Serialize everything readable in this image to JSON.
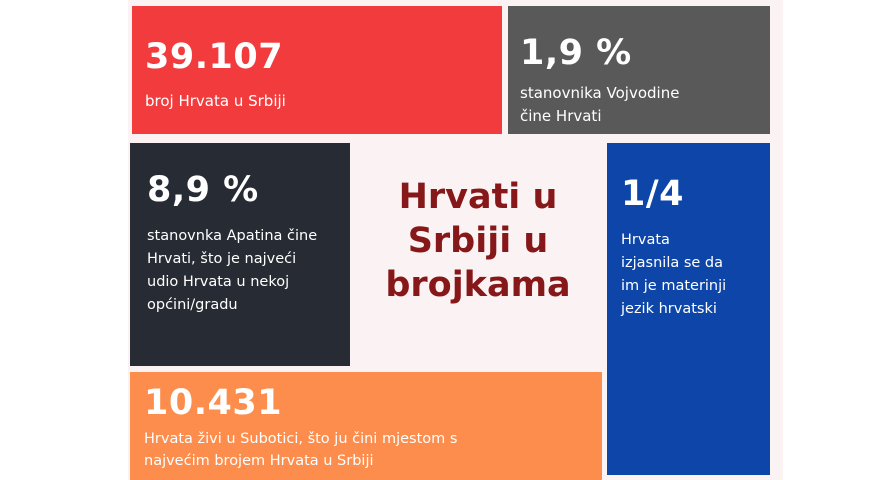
{
  "tiles": {
    "red": {
      "value": "39.107",
      "text": "broj Hrvata u Srbiji",
      "color": "#f23b3d"
    },
    "gray": {
      "value": "1,9 %",
      "text": "stanovnika Vojvodine\nčine Hrvati",
      "color": "#595959"
    },
    "dark": {
      "value": "8,9 %",
      "text": "stanovnka Apatina čine\nHrvati, što je najveći\nudio Hrvata u nekoj\nopćini/gradu",
      "color": "#272b33"
    },
    "blue": {
      "value": "1/4",
      "text": "Hrvata\nizjasnila se da\nim je materinji\njezik hrvatski",
      "color": "#0d46a8"
    },
    "orange": {
      "value": "10.431",
      "text": "Hrvata živi u Subotici, što ju čini mjestom s\nnajvećim brojem Hrvata  u Srbiji",
      "color": "#fd8d4c"
    }
  },
  "title": {
    "text": "Hrvati u\nSrbiji u\nbrojkama",
    "color": "#861819"
  }
}
